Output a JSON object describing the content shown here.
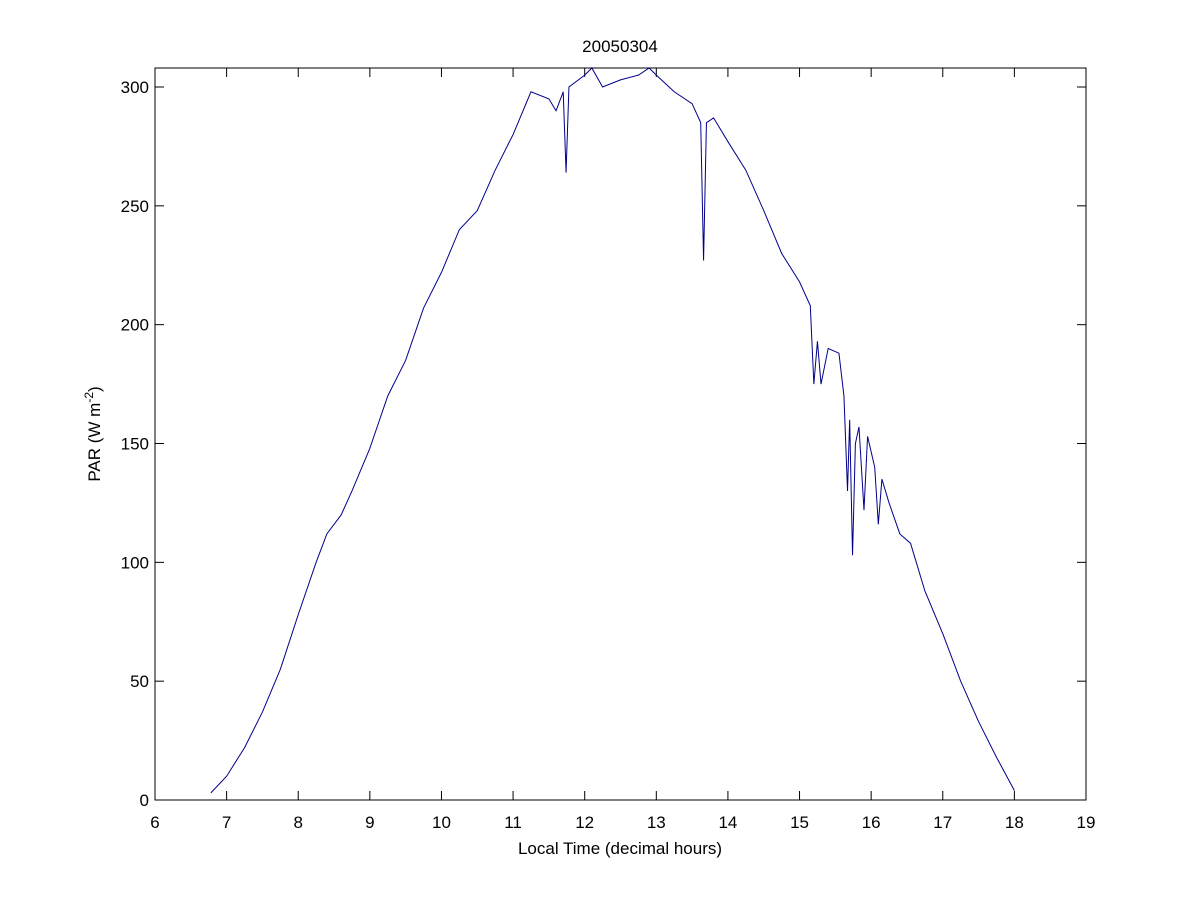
{
  "chart_data": {
    "type": "line",
    "title": "20050304",
    "xlabel": "Local Time (decimal hours)",
    "ylabel": {
      "text": "PAR (W m",
      "sup": "-2",
      "end": ")"
    },
    "x": [
      6.78,
      7.0,
      7.25,
      7.5,
      7.75,
      8.0,
      8.25,
      8.4,
      8.6,
      8.75,
      9.0,
      9.25,
      9.5,
      9.75,
      10.0,
      10.25,
      10.5,
      10.75,
      11.0,
      11.25,
      11.5,
      11.6,
      11.7,
      11.74,
      11.78,
      12.0,
      12.1,
      12.25,
      12.5,
      12.75,
      12.9,
      13.0,
      13.25,
      13.5,
      13.62,
      13.66,
      13.7,
      13.8,
      14.0,
      14.25,
      14.5,
      14.75,
      15.0,
      15.15,
      15.2,
      15.25,
      15.3,
      15.4,
      15.55,
      15.62,
      15.67,
      15.7,
      15.74,
      15.78,
      15.83,
      15.9,
      15.95,
      16.05,
      16.1,
      16.15,
      16.25,
      16.4,
      16.55,
      16.75,
      17.0,
      17.25,
      17.5,
      17.75,
      18.0
    ],
    "series": [
      {
        "name": "PAR",
        "color": "#00008b",
        "values": [
          3,
          10,
          22,
          37,
          55,
          78,
          100,
          112,
          120,
          130,
          148,
          170,
          185,
          207,
          222,
          240,
          248,
          265,
          280,
          298,
          295,
          290,
          298,
          264,
          300,
          305,
          308,
          300,
          303,
          305,
          308,
          305,
          298,
          293,
          285,
          227,
          285,
          287,
          277,
          265,
          248,
          230,
          218,
          208,
          175,
          193,
          175,
          190,
          188,
          170,
          130,
          160,
          103,
          150,
          157,
          122,
          153,
          140,
          116,
          135,
          125,
          112,
          108,
          88,
          70,
          50,
          33,
          18,
          4
        ]
      }
    ],
    "xlim": [
      6,
      19
    ],
    "xticks": [
      6,
      7,
      8,
      9,
      10,
      11,
      12,
      13,
      14,
      15,
      16,
      17,
      18,
      19
    ],
    "ylim": [
      0,
      308
    ],
    "yticks": [
      0,
      50,
      100,
      150,
      200,
      250,
      300
    ]
  }
}
